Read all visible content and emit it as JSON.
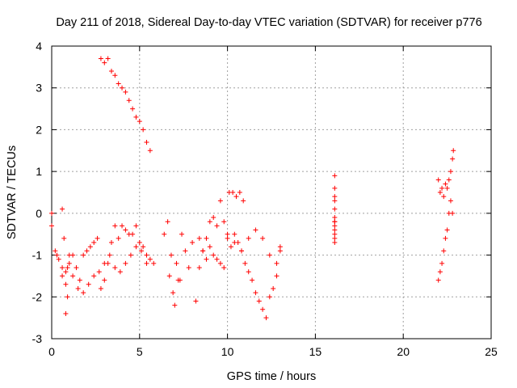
{
  "chart_data": {
    "type": "scatter",
    "title": "Day 211 of 2018, Sidereal Day-to-day VTEC variation (SDTVAR) for receiver p776",
    "xlabel": "GPS time / hours",
    "ylabel": "SDTVAR / TECUs",
    "xlim": [
      0,
      25
    ],
    "ylim": [
      -3,
      4
    ],
    "xticks": [
      "0",
      "5",
      "10",
      "15",
      "20",
      "25"
    ],
    "yticks": [
      "-3",
      "-2",
      "-1",
      "0",
      "1",
      "2",
      "3",
      "4"
    ],
    "grid": true,
    "marker": "+",
    "color": "#ff0000",
    "series": [
      {
        "name": "SDTVAR",
        "x": [
          0.0,
          0.2,
          0.4,
          0.6,
          0.8,
          1.0,
          1.2,
          1.4,
          1.6,
          1.8,
          2.0,
          2.2,
          2.4,
          2.6,
          2.8,
          3.0,
          3.2,
          3.4,
          3.6,
          3.8,
          4.0,
          4.2,
          4.4,
          4.6,
          4.8,
          5.0,
          5.2,
          5.4,
          5.6,
          5.8,
          2.8,
          3.0,
          3.2,
          3.4,
          3.6,
          3.8,
          4.0,
          4.2,
          4.4,
          4.6,
          4.8,
          5.0,
          5.2,
          5.4,
          5.6,
          0.0,
          0.3,
          0.6,
          0.8,
          0.9,
          1.0,
          1.2,
          1.5,
          1.8,
          2.1,
          2.4,
          2.7,
          3.0,
          3.3,
          3.6,
          3.9,
          4.2,
          4.5,
          4.8,
          5.1,
          5.4,
          0.6,
          0.7,
          0.8,
          0.9,
          6.4,
          6.6,
          6.8,
          7.0,
          7.2,
          7.4,
          7.6,
          7.8,
          8.0,
          6.7,
          6.9,
          7.1,
          7.3,
          8.2,
          8.4,
          8.6,
          8.8,
          9.0,
          9.2,
          9.4,
          9.6,
          9.8,
          10.0,
          10.2,
          10.4,
          10.6,
          10.8,
          11.0,
          11.2,
          11.4,
          11.6,
          11.8,
          12.0,
          12.2,
          12.4,
          12.6,
          12.8,
          13.0,
          8.4,
          8.6,
          8.8,
          9.0,
          9.2,
          9.4,
          9.6,
          9.8,
          10.0,
          10.4,
          10.8,
          11.2,
          11.6,
          12.0,
          12.4,
          12.8,
          13.0,
          10.1,
          10.3,
          10.5,
          10.7,
          10.9,
          16.1,
          16.1,
          16.1,
          16.1,
          16.1,
          16.1,
          16.1,
          16.1,
          16.1,
          16.1,
          16.1,
          16.1,
          16.1,
          22.0,
          22.1,
          22.2,
          22.3,
          22.4,
          22.5,
          22.6,
          22.7,
          22.8,
          22.85,
          22.0,
          22.1,
          22.2,
          22.3,
          22.4,
          22.5,
          22.6,
          22.7,
          22.8
        ],
        "y": [
          0.0,
          -0.9,
          -1.1,
          -1.3,
          -1.4,
          -1.2,
          -1.0,
          -1.3,
          -1.6,
          -1.0,
          -0.9,
          -0.8,
          -0.7,
          -0.6,
          -1.8,
          -1.6,
          -1.2,
          -0.7,
          -0.3,
          -0.6,
          -0.3,
          -0.4,
          -0.5,
          -0.5,
          -0.3,
          -0.7,
          -0.8,
          -1.0,
          -1.1,
          -1.2,
          3.7,
          3.6,
          3.7,
          3.4,
          3.3,
          3.1,
          3.0,
          2.9,
          2.7,
          2.5,
          2.3,
          2.2,
          2.0,
          1.7,
          1.5,
          -0.3,
          -1.0,
          -1.5,
          -1.7,
          -1.3,
          -1.0,
          -1.5,
          -1.8,
          -1.9,
          -1.7,
          -1.5,
          -1.4,
          -1.2,
          -1.0,
          -1.3,
          -1.4,
          -1.2,
          -1.0,
          -0.8,
          -0.9,
          -1.2,
          0.1,
          -0.6,
          -2.4,
          -2.0,
          -0.5,
          -0.2,
          -1.0,
          -2.2,
          -1.6,
          -0.5,
          -0.9,
          -1.3,
          -0.7,
          -1.5,
          -1.9,
          -1.2,
          -1.6,
          -2.1,
          -1.3,
          -0.9,
          -0.6,
          -0.2,
          -0.1,
          -0.3,
          0.3,
          -0.2,
          -0.6,
          -0.8,
          -0.5,
          -0.7,
          -0.9,
          -1.2,
          -1.4,
          -1.6,
          -1.9,
          -2.1,
          -2.3,
          -2.5,
          -2.0,
          -1.8,
          -1.5,
          -0.8,
          -0.6,
          -0.9,
          -1.1,
          -0.8,
          -1.0,
          -1.1,
          -1.2,
          -1.3,
          -0.5,
          -0.7,
          -0.9,
          -0.6,
          -0.4,
          -0.6,
          -1.0,
          -1.2,
          -0.9,
          0.5,
          0.5,
          0.4,
          0.5,
          0.3,
          0.9,
          0.6,
          0.4,
          0.3,
          0.1,
          -0.1,
          -0.2,
          -0.3,
          -0.4,
          -0.5,
          -0.6,
          -0.7,
          -0.2,
          0.8,
          0.5,
          0.6,
          0.4,
          0.7,
          0.6,
          0.8,
          1.0,
          1.3,
          1.5,
          -1.6,
          -1.4,
          -1.2,
          -0.9,
          -0.6,
          -0.4,
          0.0,
          0.3,
          0.0
        ]
      }
    ]
  }
}
